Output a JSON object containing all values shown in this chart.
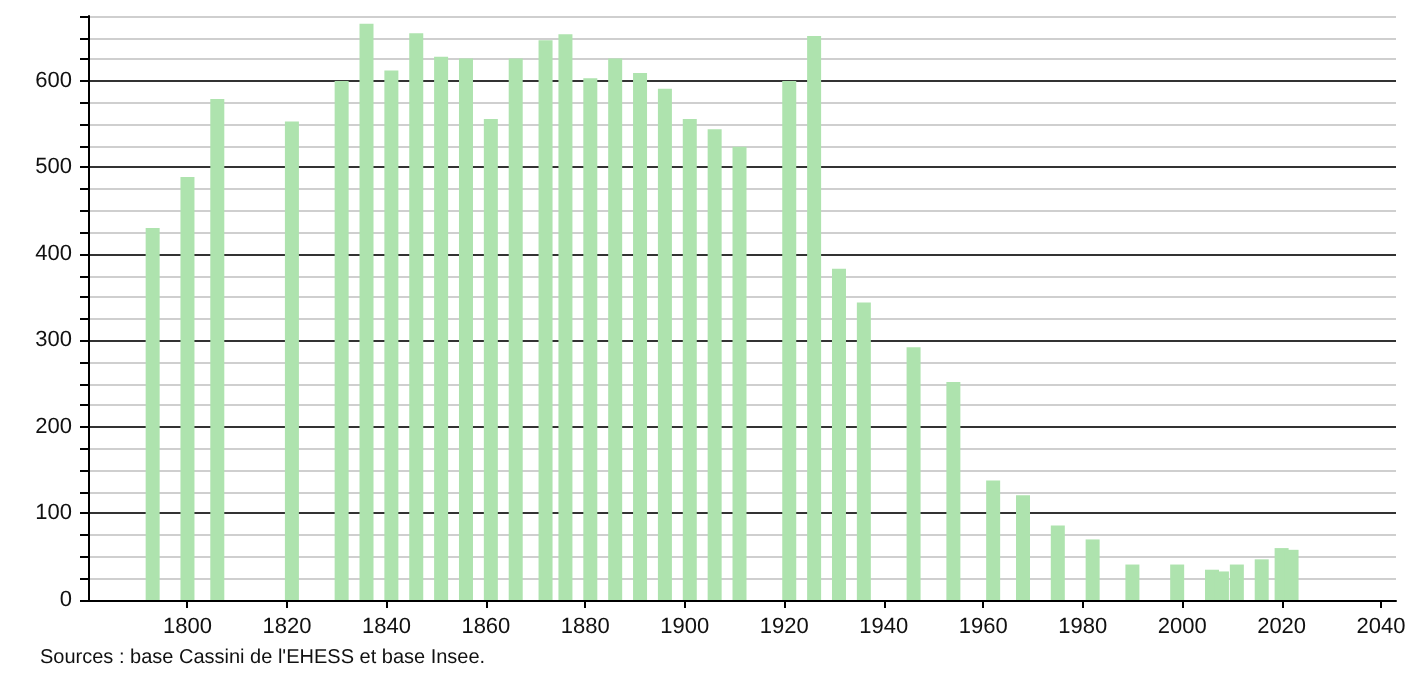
{
  "chart_data": {
    "type": "bar",
    "x": [
      1793,
      1800,
      1806,
      1821,
      1831,
      1836,
      1841,
      1846,
      1851,
      1856,
      1861,
      1866,
      1872,
      1876,
      1881,
      1886,
      1891,
      1896,
      1901,
      1906,
      1911,
      1921,
      1926,
      1931,
      1936,
      1946,
      1954,
      1962,
      1968,
      1975,
      1982,
      1990,
      1999,
      2006,
      2008,
      2011,
      2016,
      2020,
      2022
    ],
    "values": [
      430,
      489,
      579,
      553,
      600,
      666,
      612,
      655,
      628,
      626,
      556,
      626,
      647,
      654,
      603,
      626,
      609,
      591,
      556,
      544,
      524,
      600,
      652,
      383,
      344,
      292,
      252,
      138,
      121,
      86,
      70,
      41,
      41,
      35,
      33,
      41,
      47,
      60,
      58
    ],
    "color": "#aee3ae",
    "xlim": [
      1780,
      2043
    ],
    "xticks": [
      1800,
      1820,
      1840,
      1860,
      1880,
      1900,
      1920,
      1940,
      1960,
      1980,
      2000,
      2020,
      2040
    ],
    "ylim": [
      0,
      675
    ],
    "yticks": [
      0,
      {
        "value": 25,
        "label": null
      },
      {
        "value": 50,
        "label": null
      },
      {
        "value": 75,
        "label": null
      },
      100,
      {
        "value": 125,
        "label": null
      },
      {
        "value": 150,
        "label": null
      },
      {
        "value": 175,
        "label": null
      },
      200,
      {
        "value": 225,
        "label": null
      },
      {
        "value": 250,
        "label": null
      },
      {
        "value": 275,
        "label": null
      },
      300,
      {
        "value": 325,
        "label": null
      },
      {
        "value": 350,
        "label": null
      },
      {
        "value": 375,
        "label": null
      },
      400,
      {
        "value": 425,
        "label": null
      },
      {
        "value": 450,
        "label": null
      },
      {
        "value": 475,
        "label": null
      },
      500,
      {
        "value": 525,
        "label": null
      },
      {
        "value": 550,
        "label": null
      },
      {
        "value": 575,
        "label": null
      },
      600,
      {
        "value": 625,
        "label": null
      },
      {
        "value": 650,
        "label": null
      },
      {
        "value": 675,
        "label": null
      }
    ],
    "grid": "y",
    "annotations": [
      "Sources : base Cassini de l'EHESS et base Insee."
    ]
  }
}
